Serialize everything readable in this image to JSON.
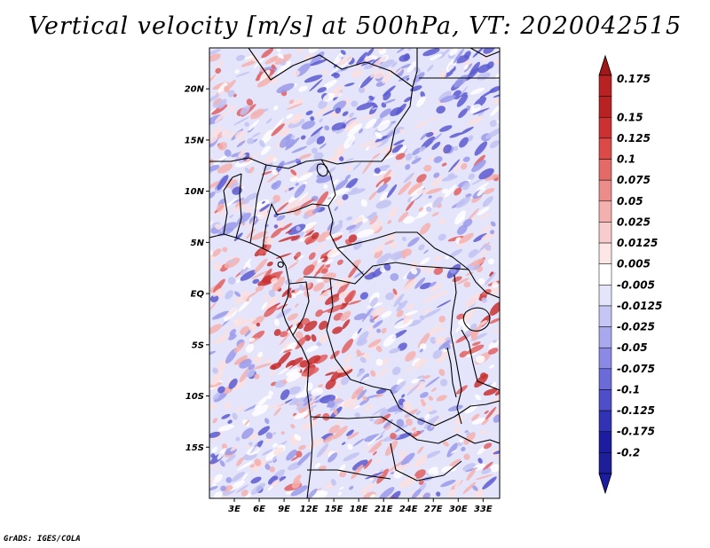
{
  "title": "Vertical velocity [m/s] at 500hPa, VT: 2020042515",
  "footer": "GrADS: IGES/COLA",
  "map": {
    "lon_range": [
      0,
      35
    ],
    "lat_range": [
      -20,
      24
    ],
    "lat_ticks": [
      {
        "value": 20,
        "label": "20N"
      },
      {
        "value": 15,
        "label": "15N"
      },
      {
        "value": 10,
        "label": "10N"
      },
      {
        "value": 5,
        "label": "5N"
      },
      {
        "value": 0,
        "label": "EQ"
      },
      {
        "value": -5,
        "label": "5S"
      },
      {
        "value": -10,
        "label": "10S"
      },
      {
        "value": -15,
        "label": "15S"
      }
    ],
    "lon_ticks": [
      {
        "value": 3,
        "label": "3E"
      },
      {
        "value": 6,
        "label": "6E"
      },
      {
        "value": 9,
        "label": "9E"
      },
      {
        "value": 12,
        "label": "12E"
      },
      {
        "value": 15,
        "label": "15E"
      },
      {
        "value": 18,
        "label": "18E"
      },
      {
        "value": 21,
        "label": "21E"
      },
      {
        "value": 24,
        "label": "24E"
      },
      {
        "value": 27,
        "label": "27E"
      },
      {
        "value": 30,
        "label": "30E"
      },
      {
        "value": 33,
        "label": "33E"
      }
    ]
  },
  "colorbar": {
    "levels": [
      {
        "label": "0.175",
        "color": "#a01818"
      },
      {
        "label": "0.15",
        "color": "#b82222"
      },
      {
        "label": "0.125",
        "color": "#cc3030"
      },
      {
        "label": "0.1",
        "color": "#dc4a48"
      },
      {
        "label": "0.075",
        "color": "#e46a68"
      },
      {
        "label": "0.05",
        "color": "#ec8c8a"
      },
      {
        "label": "0.025",
        "color": "#f4b0ae"
      },
      {
        "label": "0.0125",
        "color": "#f8cccc"
      },
      {
        "label": "0.005",
        "color": "#fce6e6"
      },
      {
        "label": "-0.005",
        "color": "#ffffff"
      },
      {
        "label": "-0.0125",
        "color": "#e4e4fa"
      },
      {
        "label": "-0.025",
        "color": "#c6c6f4"
      },
      {
        "label": "-0.05",
        "color": "#a8a8ee"
      },
      {
        "label": "-0.075",
        "color": "#8a8ae6"
      },
      {
        "label": "-0.1",
        "color": "#6a6ad8"
      },
      {
        "label": "-0.125",
        "color": "#4e4ec8"
      },
      {
        "label": "-0.175",
        "color": "#3232b4"
      },
      {
        "label": "-0.2",
        "color": "#1c1ca0"
      }
    ],
    "top_color": "#a01818",
    "bottom_color": "#1c1ca0",
    "top_segment_color": "#b82222",
    "bottom_segment_color": "#1e1e9a"
  },
  "field_colors": {
    "strong_red": "#c83030",
    "red": "#e06060",
    "light_red": "#f4b0ae",
    "pale_red": "#fbe0e0",
    "white": "#ffffff",
    "pale_blue": "#e4e4fa",
    "light_blue": "#c2c2f2",
    "blue": "#9a9aea",
    "dark_blue": "#5a5ad0"
  }
}
